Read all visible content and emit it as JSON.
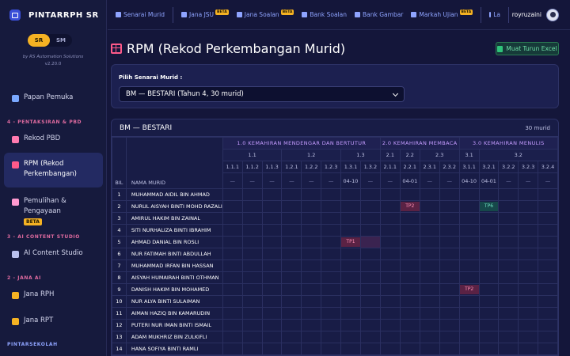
{
  "brand": {
    "name": "PINTARRPH SR",
    "switch_sr": "SR",
    "switch_sm": "SM",
    "credit": "by RS Automation Solutions",
    "version": "v2.20.0"
  },
  "sidebar": {
    "dashboard": "Papan Pemuka",
    "sec_pbd": "4 - PENTAKSIRAN & PBD",
    "rekod_pbd": "Rekod PBD",
    "rpm": "RPM (Rekod Perkembangan)",
    "pemulihan": "Pemulihan & Pengayaan",
    "beta": "BETA",
    "sec_ai": "3 - AI CONTENT STUDIO",
    "ai_studio": "AI Content Studio",
    "sec_jana": "2 - JANA AI",
    "jana_rph": "Jana RPH",
    "jana_rpt": "Jana RPT",
    "sec_pintar": "PINTARSEKOLAH"
  },
  "topbar": {
    "senarai": "Senarai Murid",
    "jana_jsu": "Jana JSU",
    "jana_soalan": "Jana Soalan",
    "bank_soalan": "Bank Soalan",
    "bank_gambar": "Bank Gambar",
    "markah": "Markah Ujian",
    "beta": "BETA",
    "la": "La",
    "user": "royruzaini"
  },
  "page": {
    "title": "RPM (Rekod Perkembangan Murid)",
    "excel": "Muat Turun Excel"
  },
  "filter": {
    "label": "Pilih Senarai Murid :",
    "selected": "BM — BESTARI (Tahun 4, 30 murid)"
  },
  "grid": {
    "class_name": "BM — BESTARI",
    "count": "30 murid",
    "col_bil": "BIL",
    "col_nama": "NAMA MURID",
    "group1": "1.0 KEMAHIRAN MENDENGAR DAN BERTUTUR",
    "group2": "2.0 KEMAHIRAN MEMBACA",
    "group3": "3.0 KEMAHIRAN MENULIS",
    "sub": [
      "1.1",
      "1.2",
      "1.3",
      "2.1",
      "2.2",
      "2.3",
      "3.1",
      "3.2"
    ],
    "codes": [
      "1.1.1",
      "1.1.2",
      "1.1.3",
      "1.2.1",
      "1.2.2",
      "1.2.3",
      "1.3.1",
      "1.3.2",
      "2.1.1",
      "2.2.1",
      "2.3.1",
      "2.3.2",
      "3.1.1",
      "3.2.1",
      "3.2.2",
      "3.2.3",
      "3.2.4"
    ],
    "dates": [
      "—",
      "—",
      "—",
      "—",
      "—",
      "—",
      "04-10",
      "—",
      "—",
      "04-01",
      "—",
      "—",
      "04-10",
      "04-01",
      "—",
      "—",
      "—"
    ],
    "students": [
      "MUHAMMAD AIDIL BIN AHMAD",
      "NURUL AISYAH BINTI MOHD RAZALI",
      "AMIRUL HAKIM BIN ZAINAL",
      "SITI NURHALIZA BINTI IBRAHIM",
      "AHMAD DANIAL BIN ROSLI",
      "NUR FATIMAH BINTI ABDULLAH",
      "MUHAMMAD IRFAN BIN HASSAN",
      "AISYAH HUMAIRAH BINTI OTHMAN",
      "DANISH HAKIM BIN MOHAMED",
      "NUR ALYA BINTI SULAIMAN",
      "AIMAN HAZIQ BIN KAMARUDIN",
      "PUTERI NUR IMAN BINTI ISMAIL",
      "ADAM MUKHRIZ BIN ZULKIFLI",
      "HANA SOFIYA BINTI RAMLI"
    ],
    "marks": {
      "tp2": "TP2",
      "tp6": "TP6",
      "tp1": "TP1"
    }
  },
  "colors": {
    "accent": "#f5b223",
    "pink": "#ff5a8a",
    "link": "#8fa4ff"
  }
}
